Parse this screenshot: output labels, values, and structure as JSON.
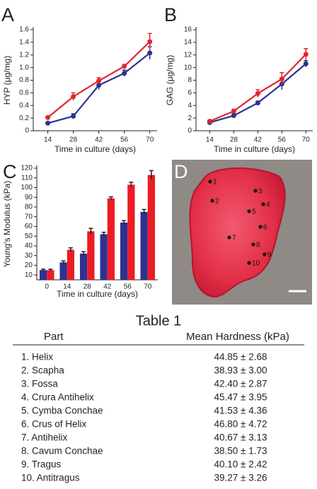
{
  "chart_data": [
    {
      "type": "line",
      "panel_label": "A",
      "xlabel": "Time in culture (days)",
      "ylabel": "HYP (μg/mg)",
      "x": [
        14,
        28,
        42,
        56,
        70
      ],
      "xlim": [
        6,
        74
      ],
      "xticks": [
        14,
        28,
        42,
        56,
        70
      ],
      "ylim": [
        0,
        1.6
      ],
      "yticks": [
        0,
        0.2,
        0.4,
        0.6,
        0.8,
        {
          "value": 1,
          "label": "1.0"
        },
        1.2,
        1.4,
        1.6
      ],
      "series": [
        {
          "color": "#2e3192",
          "values": [
            0.12,
            0.23,
            0.72,
            0.91,
            1.23
          ],
          "errors": [
            0.01,
            0.04,
            0.07,
            0.05,
            0.1
          ]
        },
        {
          "color": "#e0262b",
          "values": [
            0.21,
            0.54,
            0.79,
            1.02,
            1.41
          ],
          "errors": [
            0.02,
            0.06,
            0.05,
            0.03,
            0.13
          ]
        }
      ]
    },
    {
      "type": "line",
      "panel_label": "B",
      "xlabel": "Time in culture (days)",
      "ylabel": "GAG (μg/mg)",
      "x": [
        14,
        28,
        42,
        56,
        70
      ],
      "xlim": [
        6,
        74
      ],
      "xticks": [
        14,
        28,
        42,
        56,
        70
      ],
      "ylim": [
        0,
        16
      ],
      "yticks": [
        0,
        2,
        4,
        6,
        8,
        10,
        12,
        14,
        16
      ],
      "series": [
        {
          "color": "#2e3192",
          "values": [
            1.3,
            2.4,
            4.4,
            7.4,
            10.6
          ],
          "errors": [
            0.2,
            0.3,
            0.3,
            0.9,
            0.5
          ]
        },
        {
          "color": "#e0262b",
          "values": [
            1.5,
            3.1,
            5.9,
            8.2,
            12.1
          ],
          "errors": [
            0.2,
            0.3,
            0.6,
            1.0,
            0.9
          ]
        }
      ]
    },
    {
      "type": "bar",
      "panel_label": "C",
      "xlabel": "Time in culture (days)",
      "ylabel": "Young's Modulus (kPa)",
      "categories": [
        "0",
        "14",
        "28",
        "42",
        "56",
        "70"
      ],
      "ylim": [
        5,
        120
      ],
      "yticks": [
        10,
        20,
        30,
        40,
        50,
        60,
        70,
        80,
        90,
        100,
        110,
        120
      ],
      "series": [
        {
          "color": "#2e3192",
          "values": [
            15,
            23,
            32,
            52,
            64,
            75
          ],
          "errors": [
            1,
            1.5,
            2,
            2,
            2,
            2.5
          ]
        },
        {
          "color": "#ec1c24",
          "values": [
            15,
            36,
            55,
            89,
            103,
            113
          ],
          "errors": [
            1,
            2,
            3,
            1.5,
            2.5,
            4.5
          ]
        }
      ]
    }
  ],
  "panel_d": {
    "label": "D",
    "points": [
      "1",
      "2",
      "3",
      "4",
      "5",
      "6",
      "7",
      "8",
      "9",
      "10"
    ]
  },
  "table": {
    "title": "Table 1",
    "header": [
      "Part",
      "Mean Hardness (kPa)"
    ],
    "rows": [
      [
        "1. Helix",
        "44.85 ± 2.68"
      ],
      [
        "2. Scapha",
        "38.93 ± 3.00"
      ],
      [
        "3. Fossa",
        "42.40 ± 2.87"
      ],
      [
        "4. Crura Antihelix",
        "45.47 ± 3.95"
      ],
      [
        "5. Cymba Conchae",
        "41.53 ± 4.36"
      ],
      [
        "6. Crus of Helix",
        "46.80 ± 4.72"
      ],
      [
        "7. Antihelix",
        "40.67 ± 3.13"
      ],
      [
        "8. Cavum Conchae",
        "38.50 ± 1.73"
      ],
      [
        "9. Tragus",
        "40.10 ± 2.42"
      ],
      [
        "10. Antitragus",
        "39.27 ± 3.26"
      ]
    ]
  }
}
